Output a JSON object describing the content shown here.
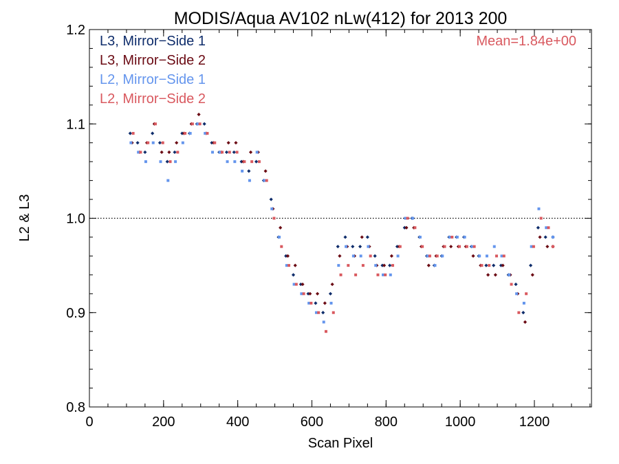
{
  "chart_data": {
    "type": "scatter",
    "title": "MODIS/Aqua AV102 nLw(412) for 2013 200",
    "xlabel": "Scan Pixel",
    "ylabel": "L2 & L3",
    "xlim": [
      0,
      1354
    ],
    "ylim": [
      0.8,
      1.2
    ],
    "xticks": [
      0,
      200,
      400,
      600,
      800,
      1000,
      1200
    ],
    "xtick_labels": [
      "0",
      "200",
      "400",
      "600",
      "800",
      "1000",
      "1200"
    ],
    "yticks": [
      0.8,
      0.9,
      1.0,
      1.1,
      1.2
    ],
    "ytick_labels": [
      "0.8",
      "0.9",
      "1.0",
      "1.1",
      "1.2"
    ],
    "reference_line": 1.0,
    "grid": false,
    "legend_position": "top-left",
    "annotation": "Mean=1.84e+00",
    "annotation_color": "#d9595f",
    "series": [
      {
        "name": "L3, Mirror−Side 1",
        "color": "#0f2d6b",
        "marker": "diamond",
        "x": [
          110,
          130,
          150,
          170,
          190,
          210,
          230,
          250,
          270,
          290,
          310,
          330,
          350,
          370,
          390,
          410,
          430,
          450,
          470,
          490,
          510,
          530,
          550,
          570,
          590,
          610,
          630,
          650,
          670,
          690,
          710,
          730,
          750,
          770,
          790,
          810,
          830,
          850,
          870,
          890,
          910,
          930,
          950,
          970,
          990,
          1010,
          1030,
          1050,
          1070,
          1090,
          1110,
          1130,
          1150,
          1170,
          1190,
          1210,
          1230,
          1250
        ],
        "y": [
          1.09,
          1.08,
          1.07,
          1.09,
          1.08,
          1.06,
          1.07,
          1.09,
          1.09,
          1.1,
          1.1,
          1.08,
          1.07,
          1.07,
          1.07,
          1.06,
          1.05,
          1.06,
          1.04,
          1.02,
          0.98,
          0.96,
          0.94,
          0.93,
          0.92,
          0.91,
          0.9,
          0.92,
          0.97,
          0.98,
          0.97,
          0.97,
          0.98,
          0.96,
          0.95,
          0.95,
          0.97,
          0.99,
          1.0,
          0.98,
          0.96,
          0.95,
          0.96,
          0.98,
          0.98,
          0.98,
          0.97,
          0.96,
          0.95,
          0.95,
          0.95,
          0.94,
          0.93,
          0.9,
          0.95,
          0.99,
          0.98,
          0.98
        ]
      },
      {
        "name": "L3, Mirror−Side 2",
        "color": "#6b0b14",
        "marker": "diamond",
        "x": [
          115,
          135,
          155,
          175,
          195,
          215,
          235,
          255,
          275,
          295,
          315,
          335,
          355,
          375,
          395,
          415,
          435,
          455,
          475,
          495,
          515,
          535,
          555,
          575,
          595,
          615,
          635,
          655,
          675,
          695,
          715,
          735,
          755,
          775,
          795,
          815,
          835,
          855,
          875,
          895,
          915,
          935,
          955,
          975,
          995,
          1015,
          1035,
          1055,
          1075,
          1095,
          1115,
          1135,
          1155,
          1175,
          1195,
          1215,
          1235,
          1250
        ],
        "y": [
          1.08,
          1.07,
          1.08,
          1.1,
          1.07,
          1.07,
          1.08,
          1.09,
          1.1,
          1.11,
          1.09,
          1.08,
          1.07,
          1.08,
          1.08,
          1.06,
          1.07,
          1.07,
          1.05,
          1.01,
          0.99,
          0.96,
          0.95,
          0.93,
          0.92,
          0.92,
          0.91,
          0.93,
          0.96,
          0.97,
          0.96,
          0.98,
          0.97,
          0.95,
          0.95,
          0.96,
          0.97,
          0.99,
          0.99,
          0.97,
          0.95,
          0.96,
          0.97,
          0.97,
          0.97,
          0.97,
          0.96,
          0.95,
          0.94,
          0.94,
          0.95,
          0.94,
          0.92,
          0.89,
          0.94,
          0.98,
          0.97,
          0.97
        ]
      },
      {
        "name": "L2, Mirror−Side 1",
        "color": "#6495ed",
        "marker": "square",
        "x": [
          112,
          132,
          152,
          172,
          192,
          212,
          232,
          252,
          272,
          292,
          312,
          332,
          352,
          372,
          392,
          412,
          432,
          452,
          472,
          492,
          512,
          532,
          552,
          572,
          592,
          612,
          632,
          652,
          672,
          692,
          712,
          732,
          752,
          772,
          792,
          812,
          832,
          852,
          872,
          892,
          912,
          932,
          952,
          972,
          992,
          1012,
          1032,
          1052,
          1072,
          1092,
          1112,
          1132,
          1152,
          1172,
          1192,
          1212,
          1232,
          1250
        ],
        "y": [
          1.08,
          1.07,
          1.06,
          1.08,
          1.06,
          1.04,
          1.06,
          1.08,
          1.09,
          1.1,
          1.09,
          1.07,
          1.07,
          1.06,
          1.06,
          1.05,
          1.04,
          1.07,
          1.04,
          1.01,
          0.98,
          0.95,
          0.93,
          0.92,
          0.91,
          0.9,
          0.89,
          0.91,
          0.95,
          0.97,
          0.96,
          0.96,
          0.97,
          0.95,
          0.94,
          0.94,
          0.96,
          1.0,
          1.0,
          0.98,
          0.96,
          0.95,
          0.96,
          0.98,
          0.98,
          0.98,
          0.97,
          0.96,
          0.96,
          0.97,
          0.96,
          0.94,
          0.92,
          0.91,
          0.97,
          1.01,
          0.99,
          0.98
        ]
      },
      {
        "name": "L2, Mirror−Side 2",
        "color": "#d9595f",
        "marker": "square",
        "x": [
          118,
          138,
          158,
          178,
          198,
          218,
          238,
          258,
          278,
          298,
          318,
          338,
          358,
          378,
          398,
          418,
          438,
          458,
          478,
          498,
          518,
          538,
          558,
          578,
          598,
          618,
          638,
          658,
          678,
          698,
          718,
          738,
          758,
          778,
          798,
          818,
          838,
          858,
          878,
          898,
          918,
          938,
          958,
          978,
          998,
          1018,
          1038,
          1058,
          1078,
          1098,
          1118,
          1138,
          1158,
          1178,
          1198,
          1218,
          1238,
          1250
        ],
        "y": [
          1.09,
          1.07,
          1.08,
          1.1,
          1.08,
          1.06,
          1.07,
          1.09,
          1.1,
          1.1,
          1.09,
          1.08,
          1.07,
          1.07,
          1.07,
          1.06,
          1.06,
          1.06,
          1.04,
          1.0,
          0.97,
          0.95,
          0.93,
          0.92,
          0.91,
          0.9,
          0.88,
          0.9,
          0.94,
          0.95,
          0.94,
          0.95,
          0.96,
          0.94,
          0.94,
          0.95,
          0.97,
          1.0,
          0.99,
          0.97,
          0.96,
          0.96,
          0.97,
          0.98,
          0.97,
          0.97,
          0.97,
          0.95,
          0.95,
          0.96,
          0.96,
          0.93,
          0.9,
          0.92,
          0.97,
          1.0,
          0.99,
          0.97
        ]
      }
    ]
  }
}
